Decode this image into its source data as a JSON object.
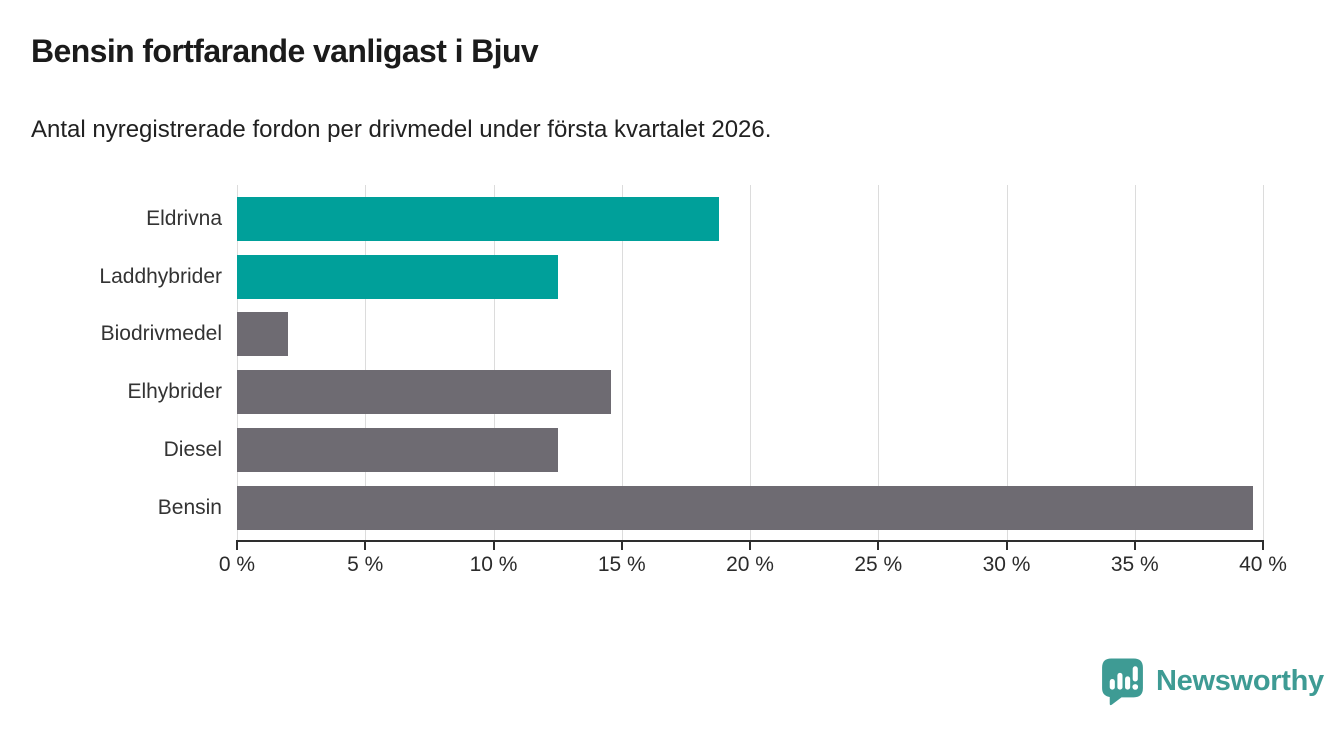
{
  "header": {
    "title": "Bensin fortfarande vanligast i Bjuv",
    "subtitle": "Antal nyregistrerade fordon per drivmedel under första kvartalet 2026."
  },
  "chart_data": {
    "type": "bar",
    "orientation": "horizontal",
    "title": "Bensin fortfarande vanligast i Bjuv",
    "subtitle": "Antal nyregistrerade fordon per drivmedel under första kvartalet 2026.",
    "categories": [
      "Eldrivna",
      "Laddhybrider",
      "Biodrivmedel",
      "Elhybrider",
      "Diesel",
      "Bensin"
    ],
    "values": [
      18.8,
      12.5,
      2.0,
      14.6,
      12.5,
      39.6
    ],
    "unit": "%",
    "bar_colors": [
      "#00a09a",
      "#00a09a",
      "#6e6b72",
      "#6e6b72",
      "#6e6b72",
      "#6e6b72"
    ],
    "xlim": [
      0,
      40
    ],
    "xticks": [
      0,
      5,
      10,
      15,
      20,
      25,
      30,
      35,
      40
    ],
    "xtick_labels": [
      "0 %",
      "5 %",
      "10 %",
      "15 %",
      "20 %",
      "25 %",
      "30 %",
      "35 %",
      "40 %"
    ],
    "xlabel": "",
    "ylabel": "",
    "grid": true,
    "legend": null
  },
  "colors": {
    "accent_teal": "#00a09a",
    "neutral_gray": "#6e6b72",
    "gridline": "#dcdcdc",
    "axis": "#2e2e2e",
    "brand_teal": "#3e9b94"
  },
  "footer": {
    "brand": "Newsworthy",
    "logo_icon": "newsworthy-speech-bubble-bar-chart-icon"
  }
}
